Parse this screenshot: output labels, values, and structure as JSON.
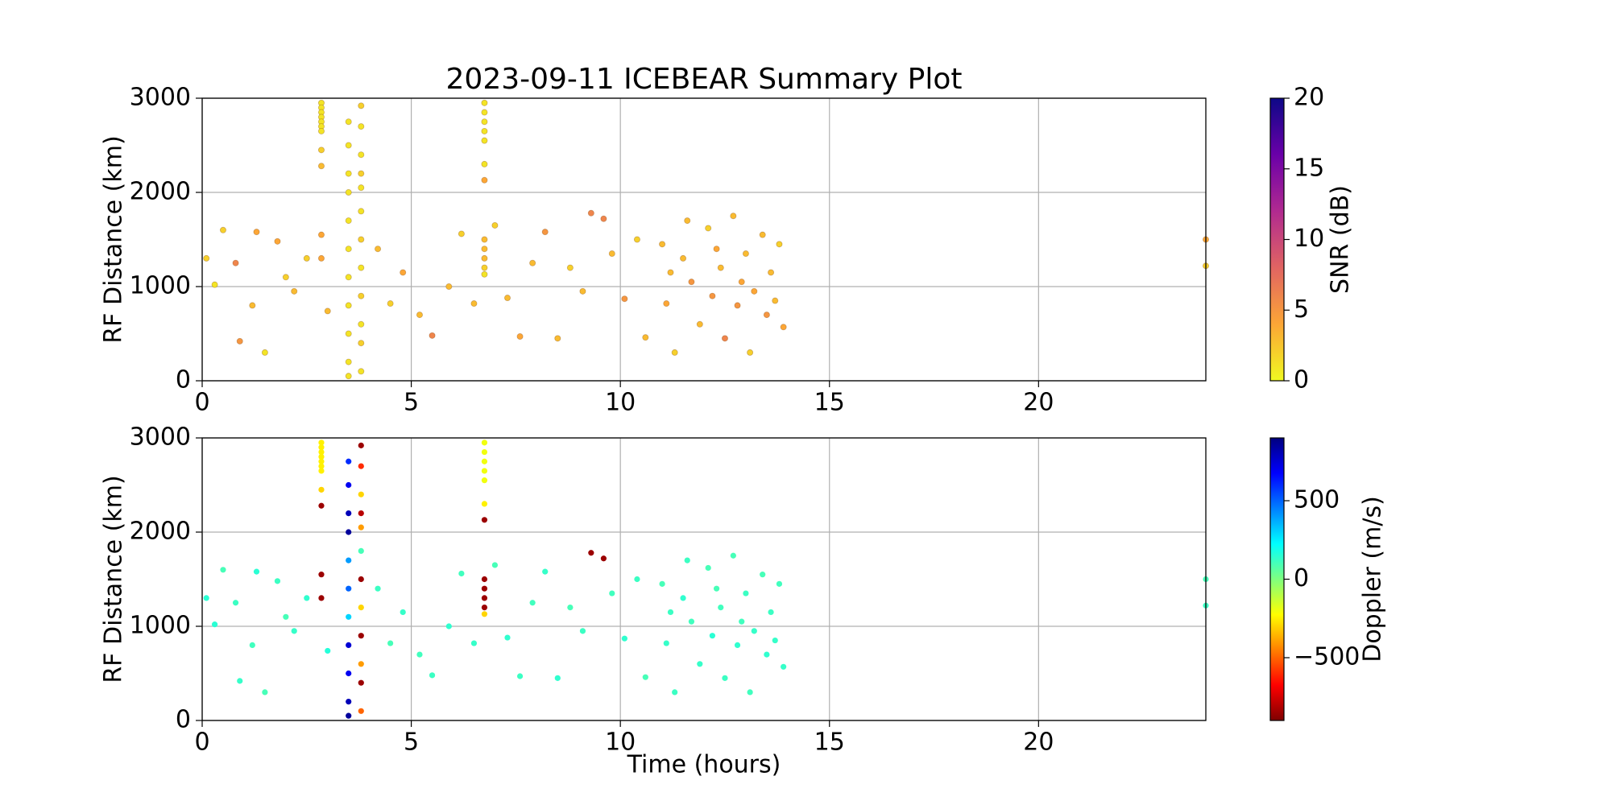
{
  "chart_data": [
    {
      "type": "scatter",
      "title": "2023-09-11 ICEBEAR Summary Plot",
      "ylabel": "RF Distance (km)",
      "x": [
        2.85,
        2.85,
        2.85,
        2.85,
        2.85,
        2.85,
        2.85,
        2.85,
        2.85,
        2.85,
        2.85,
        3.5,
        3.5,
        3.5,
        3.5,
        3.5,
        3.5,
        3.5,
        3.5,
        3.5,
        3.5,
        3.5,
        3.8,
        3.8,
        3.8,
        3.8,
        3.8,
        3.8,
        3.8,
        3.8,
        3.8,
        3.8,
        3.8,
        3.8,
        6.75,
        6.75,
        6.75,
        6.75,
        6.75,
        6.75,
        6.75,
        6.75,
        6.75,
        6.75,
        6.75,
        6.75,
        0.1,
        0.3,
        0.5,
        0.8,
        0.9,
        1.2,
        1.3,
        1.5,
        1.8,
        2.0,
        2.2,
        2.5,
        3.0,
        4.2,
        4.5,
        4.8,
        5.2,
        5.5,
        5.9,
        6.2,
        6.5,
        7.0,
        7.3,
        7.6,
        7.9,
        8.2,
        8.5,
        8.8,
        9.1,
        9.3,
        9.6,
        9.8,
        10.1,
        10.4,
        10.6,
        11.0,
        11.1,
        11.3,
        11.5,
        11.7,
        11.9,
        12.1,
        12.2,
        12.4,
        12.5,
        12.7,
        12.8,
        13.0,
        13.1,
        13.2,
        13.4,
        13.5,
        13.6,
        13.8,
        13.9,
        11.6,
        12.9,
        13.7,
        11.2,
        12.3,
        24,
        24
      ],
      "values": [
        2950,
        2900,
        2850,
        2800,
        2750,
        2700,
        2650,
        2450,
        2280,
        1550,
        1300,
        2750,
        2500,
        2200,
        2000,
        1700,
        1400,
        1100,
        800,
        500,
        200,
        50,
        2920,
        2700,
        2400,
        2200,
        2050,
        1800,
        1500,
        1200,
        900,
        600,
        400,
        100,
        2950,
        2850,
        2750,
        2650,
        2550,
        2300,
        2130,
        1500,
        1400,
        1300,
        1200,
        1130,
        1300,
        1020,
        1600,
        1250,
        420,
        800,
        1580,
        300,
        1480,
        1100,
        950,
        1300,
        740,
        1400,
        820,
        1150,
        700,
        480,
        1000,
        1560,
        820,
        1650,
        880,
        470,
        1250,
        1580,
        450,
        1200,
        950,
        1780,
        1720,
        1350,
        870,
        1500,
        460,
        1450,
        820,
        300,
        1300,
        1050,
        600,
        1620,
        900,
        1200,
        450,
        1750,
        800,
        1350,
        300,
        950,
        1550,
        700,
        1150,
        1450,
        570,
        1700,
        1050,
        850,
        1150,
        1400,
        1500,
        1220
      ],
      "color_values": [
        1,
        1,
        1,
        1,
        1,
        1,
        1,
        2,
        3,
        4,
        4,
        1,
        1,
        1,
        1,
        1,
        1,
        1,
        1,
        1,
        1,
        1,
        2,
        1,
        1,
        2,
        1,
        1,
        2,
        1,
        2,
        1,
        2,
        1,
        1,
        1,
        1,
        1,
        1,
        1,
        4,
        3,
        3,
        3,
        2,
        1,
        2,
        1,
        2,
        6,
        5,
        3,
        4,
        1,
        4,
        2,
        3,
        2,
        3,
        3,
        2,
        4,
        3,
        6,
        3,
        2,
        3,
        2,
        3,
        4,
        3,
        5,
        3,
        2,
        3,
        6,
        6,
        3,
        5,
        2,
        3,
        3,
        4,
        2,
        3,
        5,
        3,
        2,
        5,
        3,
        6,
        3,
        5,
        3,
        2,
        4,
        3,
        5,
        3,
        2,
        4,
        3,
        4,
        3,
        3,
        4,
        4,
        2
      ],
      "xlim": [
        0,
        24
      ],
      "xticks": [
        0,
        5,
        10,
        15,
        20
      ],
      "ylim": [
        0,
        3000
      ],
      "yticks": [
        0,
        1000,
        2000,
        3000
      ],
      "grid": true,
      "colorbar": {
        "label": "SNR (dB)",
        "clim": [
          0,
          20
        ],
        "ticks": [
          0,
          5,
          10,
          15,
          20
        ],
        "colormap": "plasma_r"
      }
    },
    {
      "type": "scatter",
      "ylabel": "RF Distance (km)",
      "xlabel": "Time (hours)",
      "x": [
        2.85,
        2.85,
        2.85,
        2.85,
        2.85,
        2.85,
        2.85,
        2.85,
        2.85,
        2.85,
        2.85,
        3.5,
        3.5,
        3.5,
        3.5,
        3.5,
        3.5,
        3.5,
        3.5,
        3.5,
        3.5,
        3.5,
        3.8,
        3.8,
        3.8,
        3.8,
        3.8,
        3.8,
        3.8,
        3.8,
        3.8,
        3.8,
        3.8,
        3.8,
        6.75,
        6.75,
        6.75,
        6.75,
        6.75,
        6.75,
        6.75,
        6.75,
        6.75,
        6.75,
        6.75,
        6.75,
        0.1,
        0.3,
        0.5,
        0.8,
        0.9,
        1.2,
        1.3,
        1.5,
        1.8,
        2.0,
        2.2,
        2.5,
        3.0,
        4.2,
        4.5,
        4.8,
        5.2,
        5.5,
        5.9,
        6.2,
        6.5,
        7.0,
        7.3,
        7.6,
        7.9,
        8.2,
        8.5,
        8.8,
        9.1,
        9.3,
        9.6,
        9.8,
        10.1,
        10.4,
        10.6,
        11.0,
        11.1,
        11.3,
        11.5,
        11.7,
        11.9,
        12.1,
        12.2,
        12.4,
        12.5,
        12.7,
        12.8,
        13.0,
        13.1,
        13.2,
        13.4,
        13.5,
        13.6,
        13.8,
        13.9,
        11.6,
        12.9,
        13.7,
        11.2,
        12.3,
        24,
        24
      ],
      "values": [
        2950,
        2900,
        2850,
        2800,
        2750,
        2700,
        2650,
        2450,
        2280,
        1550,
        1300,
        2750,
        2500,
        2200,
        2000,
        1700,
        1400,
        1100,
        800,
        500,
        200,
        50,
        2920,
        2700,
        2400,
        2200,
        2050,
        1800,
        1500,
        1200,
        900,
        600,
        400,
        100,
        2950,
        2850,
        2750,
        2650,
        2550,
        2300,
        2130,
        1500,
        1400,
        1300,
        1200,
        1130,
        1300,
        1020,
        1600,
        1250,
        420,
        800,
        1580,
        300,
        1480,
        1100,
        950,
        1300,
        740,
        1400,
        820,
        1150,
        700,
        480,
        1000,
        1560,
        820,
        1650,
        880,
        470,
        1250,
        1580,
        450,
        1200,
        950,
        1780,
        1720,
        1350,
        870,
        1500,
        460,
        1450,
        820,
        300,
        1300,
        1050,
        600,
        1620,
        900,
        1200,
        450,
        1750,
        800,
        1350,
        300,
        950,
        1550,
        700,
        1150,
        1450,
        570,
        1700,
        1050,
        850,
        1150,
        1400,
        1500,
        1220
      ],
      "color_values": [
        -250,
        -250,
        -250,
        -250,
        -250,
        -250,
        -250,
        -300,
        -850,
        -850,
        -850,
        600,
        700,
        800,
        850,
        400,
        500,
        300,
        750,
        700,
        800,
        850,
        -850,
        -600,
        -300,
        -800,
        -400,
        100,
        -850,
        -300,
        -850,
        -400,
        -850,
        -500,
        -200,
        -200,
        -200,
        -200,
        -200,
        -250,
        -850,
        -850,
        -850,
        -850,
        -850,
        -300,
        150,
        150,
        100,
        120,
        130,
        110,
        150,
        100,
        120,
        100,
        130,
        140,
        160,
        120,
        100,
        130,
        110,
        120,
        140,
        110,
        130,
        100,
        140,
        120,
        110,
        130,
        140,
        100,
        120,
        -850,
        -850,
        110,
        140,
        120,
        100,
        100,
        130,
        120,
        140,
        110,
        130,
        100,
        150,
        110,
        120,
        100,
        140,
        120,
        110,
        130,
        100,
        140,
        120,
        110,
        130,
        120,
        110,
        130,
        120,
        100,
        100,
        120
      ],
      "xlim": [
        0,
        24
      ],
      "xticks": [
        0,
        5,
        10,
        15,
        20
      ],
      "ylim": [
        0,
        3000
      ],
      "yticks": [
        0,
        1000,
        2000,
        3000
      ],
      "grid": true,
      "colorbar": {
        "label": "Doppler (m/s)",
        "clim": [
          -900,
          900
        ],
        "ticks": [
          {
            "value": -500,
            "label": "−500"
          },
          0,
          500
        ],
        "colormap": "jet_r"
      }
    }
  ]
}
